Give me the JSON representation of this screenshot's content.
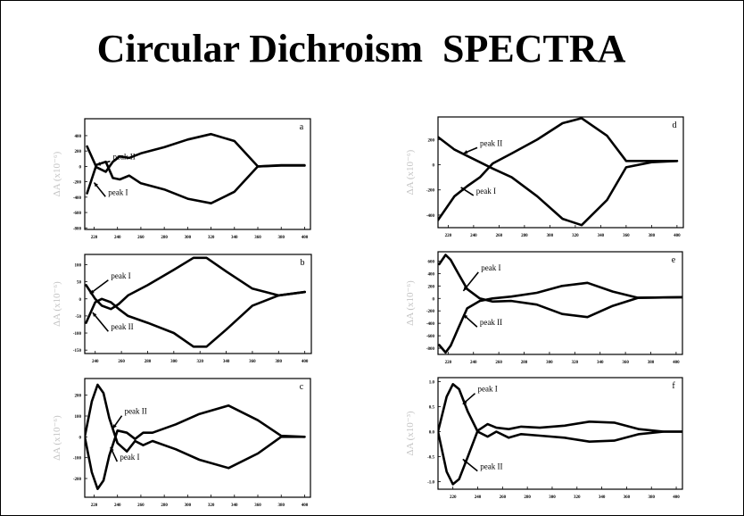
{
  "slide": {
    "title": "Circular Dichroism  SPECTRA",
    "background": "#ffffff",
    "ink": "#000000",
    "ylabel_color": "#c4c4c4"
  },
  "chart_data": [
    {
      "id": "a",
      "type": "line",
      "panel_label": "a",
      "xlim": [
        212,
        405
      ],
      "ylim": [
        -820,
        620
      ],
      "xticks": [
        220,
        240,
        260,
        280,
        300,
        320,
        340,
        360,
        380,
        400
      ],
      "yticks": [
        400,
        200,
        0,
        -200,
        -400,
        -600,
        -800
      ],
      "ylabel": "ΔA  (x10⁻⁶)",
      "series": [
        {
          "x": [
            214,
            222,
            230,
            236,
            242,
            250,
            260,
            280,
            300,
            320,
            340,
            360,
            380,
            400
          ],
          "y": [
            -350,
            20,
            60,
            -150,
            -170,
            -120,
            -220,
            -300,
            -420,
            -480,
            -330,
            0,
            10,
            10
          ]
        },
        {
          "x": [
            214,
            222,
            230,
            236,
            242,
            250,
            260,
            280,
            300,
            320,
            340,
            360,
            380,
            400
          ],
          "y": [
            260,
            -10,
            -70,
            60,
            130,
            110,
            170,
            250,
            350,
            420,
            330,
            0,
            15,
            15
          ]
        }
      ],
      "annotations": [
        {
          "text": "peak II",
          "x": 236,
          "y": 90,
          "ax": 222,
          "ay": 20
        },
        {
          "text": "peak I",
          "x": 232,
          "y": -370,
          "ax": 220,
          "ay": -210
        }
      ]
    },
    {
      "id": "b",
      "type": "line",
      "panel_label": "b",
      "xlim": [
        232,
        405
      ],
      "ylim": [
        -160,
        130
      ],
      "xticks": [
        240,
        260,
        280,
        300,
        320,
        340,
        360,
        380,
        400
      ],
      "yticks": [
        100,
        50,
        0,
        -50,
        -100,
        -150
      ],
      "ylabel": "ΔA  (x10⁻⁶)",
      "series": [
        {
          "x": [
            233,
            240,
            245,
            252,
            258,
            265,
            280,
            300,
            315,
            325,
            340,
            360,
            380,
            400
          ],
          "y": [
            -70,
            -10,
            0,
            -10,
            -30,
            -50,
            -70,
            -100,
            -140,
            -140,
            -90,
            -20,
            10,
            20
          ]
        },
        {
          "x": [
            233,
            240,
            245,
            252,
            258,
            265,
            280,
            300,
            315,
            325,
            340,
            360,
            380,
            400
          ],
          "y": [
            40,
            0,
            -20,
            -30,
            -15,
            10,
            40,
            85,
            120,
            120,
            80,
            30,
            10,
            20
          ]
        }
      ],
      "annotations": [
        {
          "text": "peak I",
          "x": 252,
          "y": 60,
          "ax": 236,
          "ay": 15
        },
        {
          "text": "peak II",
          "x": 252,
          "y": -90,
          "ax": 238,
          "ay": -40
        }
      ]
    },
    {
      "id": "c",
      "type": "line",
      "panel_label": "c",
      "xlim": [
        212,
        405
      ],
      "ylim": [
        -290,
        280
      ],
      "xticks": [
        220,
        240,
        260,
        280,
        300,
        320,
        340,
        360,
        380,
        400
      ],
      "yticks": [
        200,
        100,
        0,
        -100,
        -200
      ],
      "ylabel": "ΔA  (x10⁻⁶)",
      "series": [
        {
          "x": [
            212,
            218,
            223,
            228,
            233,
            240,
            248,
            255,
            262,
            270,
            290,
            310,
            335,
            360,
            380,
            400
          ],
          "y": [
            0,
            170,
            250,
            210,
            90,
            -30,
            -70,
            -20,
            -40,
            -20,
            -60,
            -110,
            -150,
            -80,
            0,
            0
          ]
        },
        {
          "x": [
            212,
            218,
            223,
            228,
            233,
            240,
            248,
            255,
            262,
            270,
            290,
            310,
            335,
            360,
            380,
            400
          ],
          "y": [
            0,
            -170,
            -250,
            -210,
            -90,
            30,
            20,
            -10,
            20,
            20,
            60,
            110,
            150,
            80,
            5,
            0
          ]
        }
      ],
      "annotations": [
        {
          "text": "peak II",
          "x": 246,
          "y": 110,
          "ax": 236,
          "ay": 40
        },
        {
          "text": "peak I",
          "x": 242,
          "y": -110,
          "ax": 234,
          "ay": -50
        }
      ]
    },
    {
      "id": "d",
      "type": "line",
      "panel_label": "d",
      "xlim": [
        212,
        405
      ],
      "ylim": [
        -500,
        380
      ],
      "xticks": [
        220,
        240,
        260,
        280,
        300,
        320,
        340,
        360,
        380,
        400
      ],
      "yticks": [
        200,
        0,
        -200,
        -400
      ],
      "ylabel": "ΔA  (x10⁻⁶)",
      "series": [
        {
          "x": [
            212,
            225,
            235,
            245,
            255,
            270,
            290,
            310,
            325,
            345,
            360,
            380,
            400
          ],
          "y": [
            220,
            120,
            70,
            20,
            -30,
            -100,
            -250,
            -430,
            -480,
            -280,
            -20,
            20,
            30
          ]
        },
        {
          "x": [
            212,
            225,
            235,
            245,
            255,
            270,
            290,
            310,
            325,
            345,
            360,
            380,
            400
          ],
          "y": [
            -440,
            -250,
            -170,
            -100,
            10,
            90,
            200,
            330,
            370,
            230,
            30,
            30,
            30
          ]
        }
      ],
      "annotations": [
        {
          "text": "peak II",
          "x": 245,
          "y": 150,
          "ax": 232,
          "ay": 90
        },
        {
          "text": "peak I",
          "x": 242,
          "y": -230,
          "ax": 230,
          "ay": -180
        }
      ]
    },
    {
      "id": "e",
      "type": "line",
      "panel_label": "e",
      "xlim": [
        212,
        405
      ],
      "ylim": [
        -900,
        750
      ],
      "xticks": [
        220,
        240,
        260,
        280,
        300,
        320,
        340,
        360,
        380,
        400
      ],
      "yticks": [
        600,
        400,
        200,
        0,
        -200,
        -400,
        -600,
        -800
      ],
      "ylabel": "ΔA  (x10⁻⁶)",
      "series": [
        {
          "x": [
            213,
            218,
            222,
            228,
            235,
            245,
            255,
            270,
            290,
            310,
            330,
            350,
            370,
            390,
            405
          ],
          "y": [
            550,
            700,
            620,
            400,
            150,
            0,
            -50,
            -40,
            -100,
            -250,
            -300,
            -120,
            10,
            15,
            20
          ]
        },
        {
          "x": [
            213,
            218,
            222,
            228,
            235,
            245,
            255,
            270,
            290,
            310,
            330,
            350,
            370,
            390,
            405
          ],
          "y": [
            -750,
            -870,
            -760,
            -480,
            -160,
            -40,
            0,
            30,
            90,
            200,
            250,
            110,
            10,
            15,
            20
          ]
        }
      ],
      "annotations": [
        {
          "text": "peak I",
          "x": 246,
          "y": 450,
          "ax": 232,
          "ay": 120
        },
        {
          "text": "peak II",
          "x": 245,
          "y": -430,
          "ax": 232,
          "ay": -260
        }
      ]
    },
    {
      "id": "f",
      "type": "line",
      "panel_label": "f",
      "xlim": [
        208,
        405
      ],
      "ylim": [
        -1.15,
        1.08
      ],
      "xticks": [
        220,
        240,
        260,
        280,
        300,
        320,
        340,
        360,
        380,
        400
      ],
      "yticks": [
        1.0,
        0.5,
        0.0,
        -0.5,
        -1.0
      ],
      "ylabel": "ΔA  (x10⁻³)",
      "series": [
        {
          "x": [
            208,
            215,
            220,
            225,
            232,
            240,
            248,
            255,
            265,
            275,
            290,
            310,
            330,
            350,
            370,
            390,
            405
          ],
          "y": [
            0,
            0.7,
            0.95,
            0.85,
            0.4,
            0,
            -0.1,
            0,
            -0.12,
            -0.05,
            -0.08,
            -0.12,
            -0.2,
            -0.18,
            -0.05,
            0,
            0
          ]
        },
        {
          "x": [
            208,
            215,
            220,
            225,
            232,
            240,
            248,
            255,
            265,
            275,
            290,
            310,
            330,
            350,
            370,
            390,
            405
          ],
          "y": [
            0,
            -0.8,
            -1.05,
            -0.95,
            -0.5,
            0.02,
            0.15,
            0.08,
            0.05,
            0.1,
            0.08,
            0.12,
            0.2,
            0.18,
            0.05,
            0,
            0
          ]
        }
      ],
      "annotations": [
        {
          "text": "peak I",
          "x": 240,
          "y": 0.8,
          "ax": 228,
          "ay": 0.55
        },
        {
          "text": "peak II",
          "x": 242,
          "y": -0.75,
          "ax": 228,
          "ay": -0.55
        }
      ]
    }
  ]
}
